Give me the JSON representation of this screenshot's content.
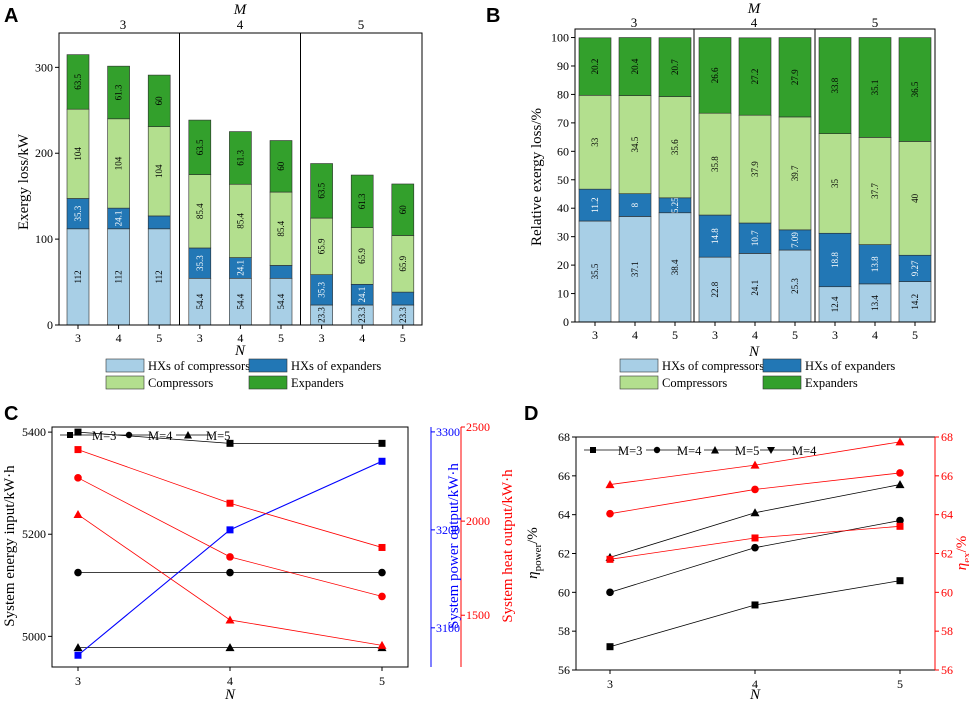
{
  "panels": {
    "A": {
      "letter": "A",
      "top_label": "M",
      "group_labels": [
        "3",
        "4",
        "5"
      ],
      "x_ticks": [
        "3",
        "4",
        "5",
        "3",
        "4",
        "5",
        "3",
        "4",
        "5"
      ],
      "xlabel": "N",
      "ylabel": "Exergy loss/kW",
      "y_ticks": [
        "0",
        "100",
        "200",
        "300"
      ],
      "ylim": [
        0,
        340
      ],
      "legend": [
        "HXs of compressors",
        "HXs of expanders",
        "Compressors",
        "Expanders"
      ],
      "colors": [
        "#a8cfe6",
        "#2277b5",
        "#b3df8e",
        "#33a02c"
      ],
      "stacks": [
        [
          "112",
          "35.3",
          "104",
          "63.5"
        ],
        [
          "112",
          "24.1",
          "104",
          "61.3"
        ],
        [
          "112",
          "",
          "104",
          "60"
        ],
        [
          "54.4",
          "35.3",
          "85.4",
          "63.5"
        ],
        [
          "54.4",
          "24.1",
          "85.4",
          "61.3"
        ],
        [
          "54.4",
          "",
          "85.4",
          "60"
        ],
        [
          "23.3",
          "35.3",
          "65.9",
          "63.5"
        ],
        [
          "23.3",
          "24.1",
          "65.9",
          "61.3"
        ],
        [
          "23.3",
          "",
          "65.9",
          "60"
        ]
      ]
    },
    "B": {
      "letter": "B",
      "top_label": "M",
      "group_labels": [
        "3",
        "4",
        "5"
      ],
      "x_ticks": [
        "3",
        "4",
        "5",
        "3",
        "4",
        "5",
        "3",
        "4",
        "5"
      ],
      "xlabel": "N",
      "ylabel": "Relative exergy loss/%",
      "y_ticks": [
        "0",
        "10",
        "20",
        "30",
        "40",
        "50",
        "60",
        "70",
        "80",
        "90",
        "100"
      ],
      "ylim": [
        0,
        103
      ],
      "legend": [
        "HXs of compressors",
        "HXs of expanders",
        "Compressors",
        "Expanders"
      ],
      "colors": [
        "#a8cfe6",
        "#2277b5",
        "#b3df8e",
        "#33a02c"
      ],
      "stacks": [
        [
          "35.5",
          "11.2",
          "33",
          "20.2"
        ],
        [
          "37.1",
          "8",
          "34.5",
          "20.4"
        ],
        [
          "38.4",
          "5.25",
          "35.6",
          "20.7"
        ],
        [
          "22.8",
          "14.8",
          "35.8",
          "26.6"
        ],
        [
          "24.1",
          "10.7",
          "37.9",
          "27.2"
        ],
        [
          "25.3",
          "7.09",
          "39.7",
          "27.9"
        ],
        [
          "12.4",
          "18.8",
          "35",
          "33.8"
        ],
        [
          "13.4",
          "13.8",
          "37.7",
          "35.1"
        ],
        [
          "14.2",
          "9.27",
          "40",
          "36.5"
        ]
      ]
    },
    "C": {
      "letter": "C",
      "xlabel": "N",
      "x_ticks": [
        "3",
        "4",
        "5"
      ],
      "ylabel_left": "System energy input/kW·h",
      "ylabel_blue": "System power output/kW·h",
      "ylabel_red": "System heat output/kW·h",
      "left_ticks": [
        "5000",
        "5200",
        "5400"
      ],
      "blue_ticks": [
        "3100",
        "3200",
        "3300"
      ],
      "red_ticks": [
        "1500",
        "2000",
        "2500"
      ],
      "legend": [
        "M=3",
        "M=4",
        "M=5"
      ],
      "colors": {
        "black": "#000000",
        "blue": "#0000ff",
        "red": "#ff0000"
      }
    },
    "D": {
      "letter": "D",
      "xlabel": "N",
      "x_ticks": [
        "3",
        "4",
        "5"
      ],
      "ylabel_left_main": "η",
      "ylabel_left_sub": "power",
      "ylabel_left_tail": "/%",
      "ylabel_right_main": "η",
      "ylabel_right_sub": "ex",
      "ylabel_right_tail": "/%",
      "left_ticks": [
        "56",
        "58",
        "60",
        "62",
        "64",
        "66",
        "68"
      ],
      "right_ticks": [
        "56",
        "58",
        "60",
        "62",
        "64",
        "66",
        "68"
      ],
      "legend": [
        "M=3",
        "M=4",
        "M=5",
        "M=4"
      ],
      "colors": {
        "black": "#000000",
        "red": "#ff0000"
      }
    }
  },
  "chart_data": [
    {
      "type": "bar",
      "stacked": true,
      "title": "A",
      "xlabel": "N",
      "ylabel": "Exergy loss/kW",
      "groups": [
        "M=3",
        "M=4",
        "M=5"
      ],
      "categories": [
        "3",
        "4",
        "5",
        "3",
        "4",
        "5",
        "3",
        "4",
        "5"
      ],
      "ylim": [
        0,
        340
      ],
      "series": [
        {
          "name": "HXs of compressors",
          "values": [
            112,
            112,
            112,
            54.4,
            54.4,
            54.4,
            23.3,
            23.3,
            23.3
          ]
        },
        {
          "name": "HXs of expanders",
          "values": [
            35.3,
            24.1,
            15,
            35.3,
            24.1,
            15,
            35.3,
            24.1,
            15
          ]
        },
        {
          "name": "Compressors",
          "values": [
            104,
            104,
            104,
            85.4,
            85.4,
            85.4,
            65.9,
            65.9,
            65.9
          ]
        },
        {
          "name": "Expanders",
          "values": [
            63.5,
            61.3,
            60,
            63.5,
            61.3,
            60,
            63.5,
            61.3,
            60
          ]
        }
      ]
    },
    {
      "type": "bar",
      "stacked": true,
      "title": "B",
      "xlabel": "N",
      "ylabel": "Relative exergy loss/%",
      "groups": [
        "M=3",
        "M=4",
        "M=5"
      ],
      "categories": [
        "3",
        "4",
        "5",
        "3",
        "4",
        "5",
        "3",
        "4",
        "5"
      ],
      "ylim": [
        0,
        103
      ],
      "series": [
        {
          "name": "HXs of compressors",
          "values": [
            35.5,
            37.1,
            38.4,
            22.8,
            24.1,
            25.3,
            12.4,
            13.4,
            14.2
          ]
        },
        {
          "name": "HXs of expanders",
          "values": [
            11.2,
            8,
            5.25,
            14.8,
            10.7,
            7.09,
            18.8,
            13.8,
            9.27
          ]
        },
        {
          "name": "Compressors",
          "values": [
            33,
            34.5,
            35.6,
            35.8,
            37.9,
            39.7,
            35,
            37.7,
            40
          ]
        },
        {
          "name": "Expanders",
          "values": [
            20.2,
            20.4,
            20.7,
            26.6,
            27.2,
            27.9,
            33.8,
            35.1,
            36.5
          ]
        }
      ]
    },
    {
      "type": "line",
      "title": "C",
      "x": [
        3,
        4,
        5
      ],
      "xlabel": "N",
      "axes": {
        "left": [
          4940,
          5410
        ],
        "blue": [
          3060,
          3305
        ],
        "red": [
          1225,
          2500
        ]
      },
      "series": [
        {
          "name": "M=3",
          "axis": "left",
          "color": "black",
          "marker": "square",
          "values": [
            5400,
            5378,
            5378
          ]
        },
        {
          "name": "M=4",
          "axis": "left",
          "color": "black",
          "marker": "circle",
          "values": [
            5125,
            5125,
            5125
          ]
        },
        {
          "name": "M=5",
          "axis": "left",
          "color": "black",
          "marker": "triangle",
          "values": [
            4978,
            4978,
            4978
          ]
        },
        {
          "name": "Power output",
          "axis": "blue",
          "color": "blue",
          "marker": "square",
          "values": [
            3072,
            3200,
            3270
          ]
        },
        {
          "name": "Heat output M=3",
          "axis": "red",
          "color": "red",
          "marker": "square",
          "values": [
            2380,
            2095,
            1860
          ]
        },
        {
          "name": "Heat output M=4",
          "axis": "red",
          "color": "red",
          "marker": "circle",
          "values": [
            2230,
            1810,
            1600
          ]
        },
        {
          "name": "Heat output M=5",
          "axis": "red",
          "color": "red",
          "marker": "triangle",
          "values": [
            2035,
            1475,
            1340
          ]
        }
      ]
    },
    {
      "type": "line",
      "title": "D",
      "x": [
        3,
        4,
        5
      ],
      "xlabel": "N",
      "axes": {
        "left": [
          56,
          68
        ],
        "right": [
          56,
          68
        ]
      },
      "series": [
        {
          "name": "M=3",
          "axis": "left",
          "color": "black",
          "marker": "square",
          "values": [
            57.2,
            59.35,
            60.6
          ]
        },
        {
          "name": "M=4",
          "axis": "left",
          "color": "black",
          "marker": "circle",
          "values": [
            60,
            62.3,
            63.7
          ]
        },
        {
          "name": "M=5",
          "axis": "left",
          "color": "black",
          "marker": "triangle",
          "values": [
            61.8,
            64.1,
            65.55
          ]
        },
        {
          "name": "eta_ex M=3",
          "axis": "right",
          "color": "red",
          "marker": "square",
          "values": [
            61.7,
            62.8,
            63.4
          ]
        },
        {
          "name": "eta_ex M=4",
          "axis": "right",
          "color": "red",
          "marker": "circle",
          "values": [
            64.05,
            65.3,
            66.15
          ]
        },
        {
          "name": "eta_ex M=5",
          "axis": "right",
          "color": "red",
          "marker": "triangle",
          "values": [
            65.55,
            66.55,
            67.75
          ]
        }
      ]
    }
  ]
}
